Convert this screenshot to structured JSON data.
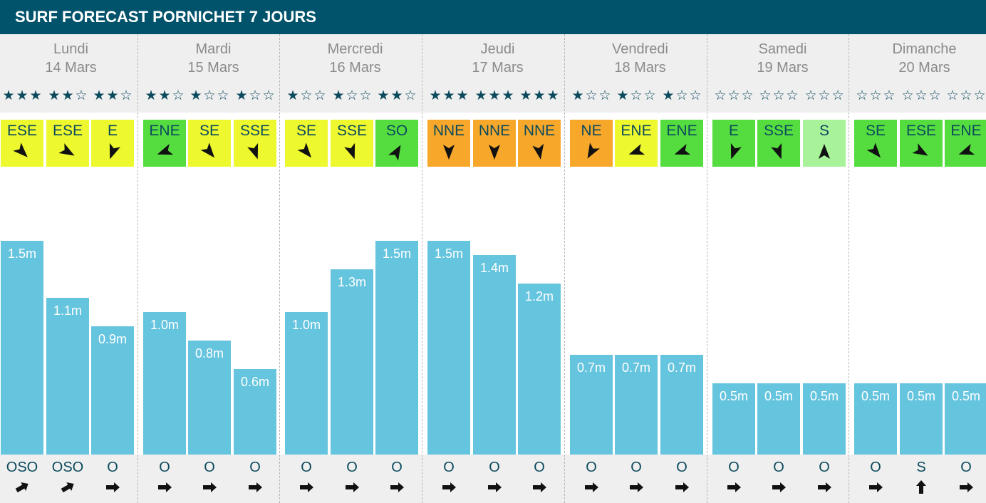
{
  "header": {
    "title": "SURF FORECAST PORNICHET 7 JOURS"
  },
  "colors": {
    "header_bg": "#00536b",
    "bar": "#65c4de",
    "star": "#0b4a5c",
    "wind_yellow": "#eef82f",
    "wind_green": "#55dd40",
    "wind_orange": "#f7a82b",
    "wind_lightgreen": "#a8f29a"
  },
  "days": [
    {
      "name": "Lundi",
      "date": "14 Mars"
    },
    {
      "name": "Mardi",
      "date": "15 Mars"
    },
    {
      "name": "Mercredi",
      "date": "16 Mars"
    },
    {
      "name": "Jeudi",
      "date": "17 Mars"
    },
    {
      "name": "Vendredi",
      "date": "18 Mars"
    },
    {
      "name": "Samedi",
      "date": "19 Mars"
    },
    {
      "name": "Dimanche",
      "date": "20 Mars"
    }
  ],
  "chart_data": {
    "type": "bar",
    "title": "SURF FORECAST PORNICHET 7 JOURS",
    "categories": [
      "Lundi 14 Mars",
      "Mardi 15 Mars",
      "Mercredi 16 Mars",
      "Jeudi 17 Mars",
      "Vendredi 18 Mars",
      "Samedi 19 Mars",
      "Dimanche 20 Mars"
    ],
    "ylim": [
      0,
      2
    ],
    "series": [
      {
        "values": [
          1.5,
          1.1,
          0.9,
          1.0,
          0.8,
          0.6,
          1.0,
          1.3,
          1.5,
          1.5,
          1.4,
          1.2,
          0.7,
          0.7,
          0.7,
          0.5,
          0.5,
          0.5,
          0.5,
          0.5,
          0.5
        ]
      }
    ],
    "labels": [
      "1.5m",
      "1.1m",
      "0.9m",
      "1.0m",
      "0.8m",
      "0.6m",
      "1.0m",
      "1.3m",
      "1.5m",
      "1.5m",
      "1.4m",
      "1.2m",
      "0.7m",
      "0.7m",
      "0.7m",
      "0.5m",
      "0.5m",
      "0.5m",
      "0.5m",
      "0.5m",
      "0.5m"
    ],
    "stars": [
      3,
      2,
      2,
      2,
      1,
      1,
      1,
      1,
      2,
      3,
      3,
      3,
      1,
      1,
      1,
      0,
      0,
      0,
      0,
      0,
      0
    ],
    "stars_max": 3,
    "wind": [
      {
        "dir": "ESE",
        "color": "wind_yellow",
        "angle": 135
      },
      {
        "dir": "ESE",
        "color": "wind_yellow",
        "angle": 120
      },
      {
        "dir": "E",
        "color": "wind_yellow",
        "angle": 200
      },
      {
        "dir": "ENE",
        "color": "wind_green",
        "angle": 250
      },
      {
        "dir": "SE",
        "color": "wind_yellow",
        "angle": 140
      },
      {
        "dir": "SSE",
        "color": "wind_yellow",
        "angle": 160
      },
      {
        "dir": "SE",
        "color": "wind_yellow",
        "angle": 140
      },
      {
        "dir": "SSE",
        "color": "wind_yellow",
        "angle": 160
      },
      {
        "dir": "SO",
        "color": "wind_green",
        "angle": 30
      },
      {
        "dir": "NNE",
        "color": "wind_orange",
        "angle": 180
      },
      {
        "dir": "NNE",
        "color": "wind_orange",
        "angle": 180
      },
      {
        "dir": "NNE",
        "color": "wind_orange",
        "angle": 170
      },
      {
        "dir": "NE",
        "color": "wind_orange",
        "angle": 210
      },
      {
        "dir": "ENE",
        "color": "wind_yellow",
        "angle": 250
      },
      {
        "dir": "ENE",
        "color": "wind_green",
        "angle": 250
      },
      {
        "dir": "E",
        "color": "wind_green",
        "angle": 200
      },
      {
        "dir": "SSE",
        "color": "wind_green",
        "angle": 160
      },
      {
        "dir": "S",
        "color": "wind_lightgreen",
        "angle": 0
      },
      {
        "dir": "SE",
        "color": "wind_green",
        "angle": 140
      },
      {
        "dir": "ESE",
        "color": "wind_green",
        "angle": 120
      },
      {
        "dir": "ENE",
        "color": "wind_green",
        "angle": 250
      }
    ],
    "swell": [
      {
        "dir": "OSO",
        "angle": 60
      },
      {
        "dir": "OSO",
        "angle": 60
      },
      {
        "dir": "O",
        "angle": 90
      },
      {
        "dir": "O",
        "angle": 90
      },
      {
        "dir": "O",
        "angle": 90
      },
      {
        "dir": "O",
        "angle": 90
      },
      {
        "dir": "O",
        "angle": 90
      },
      {
        "dir": "O",
        "angle": 90
      },
      {
        "dir": "O",
        "angle": 90
      },
      {
        "dir": "O",
        "angle": 90
      },
      {
        "dir": "O",
        "angle": 90
      },
      {
        "dir": "O",
        "angle": 90
      },
      {
        "dir": "O",
        "angle": 90
      },
      {
        "dir": "O",
        "angle": 90
      },
      {
        "dir": "O",
        "angle": 90
      },
      {
        "dir": "O",
        "angle": 90
      },
      {
        "dir": "O",
        "angle": 90
      },
      {
        "dir": "O",
        "angle": 90
      },
      {
        "dir": "O",
        "angle": 90
      },
      {
        "dir": "S",
        "angle": 0
      },
      {
        "dir": "O",
        "angle": 90
      }
    ]
  }
}
